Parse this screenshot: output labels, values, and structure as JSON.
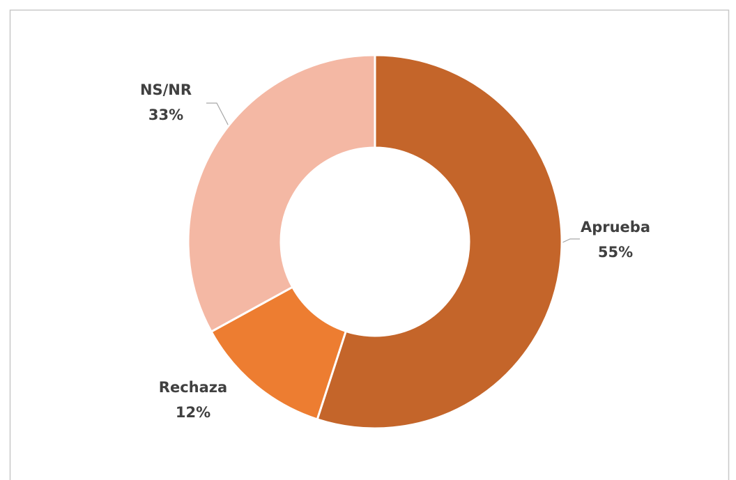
{
  "chart_data": {
    "type": "donut",
    "categories": [
      "Aprueba",
      "Rechaza",
      "NS/NR"
    ],
    "values": [
      55,
      12,
      33
    ],
    "value_labels": [
      "55%",
      "12%",
      "33%"
    ],
    "colors": [
      "#c4652a",
      "#ed7d31",
      "#f4b8a4"
    ]
  }
}
